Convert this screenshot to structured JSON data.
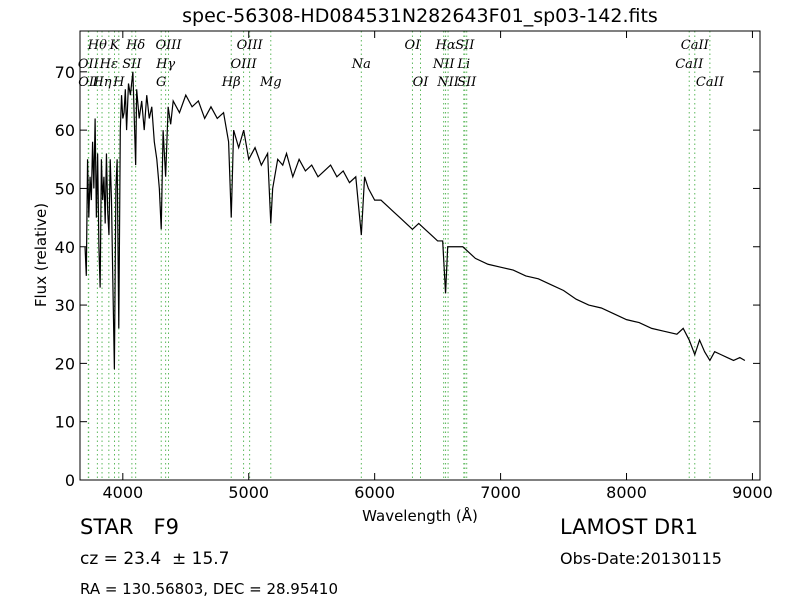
{
  "chart_data": {
    "type": "line",
    "title": "spec-56308-HD084531N282643F01_sp03-142.fits",
    "x_label": "Wavelength (Å)",
    "y_label": "Flux (relative)",
    "xlim": [
      3660,
      9060
    ],
    "ylim": [
      0,
      77
    ],
    "xticks": [
      4000,
      5000,
      6000,
      7000,
      8000,
      9000
    ],
    "yticks": [
      0,
      10,
      20,
      30,
      40,
      50,
      60,
      70
    ],
    "x": [
      3700,
      3710,
      3720,
      3730,
      3740,
      3750,
      3760,
      3770,
      3780,
      3790,
      3800,
      3810,
      3820,
      3830,
      3840,
      3850,
      3860,
      3870,
      3880,
      3890,
      3900,
      3910,
      3920,
      3933,
      3945,
      3955,
      3968,
      3980,
      3990,
      4000,
      4010,
      4020,
      4030,
      4045,
      4060,
      4080,
      4102,
      4110,
      4130,
      4150,
      4170,
      4190,
      4210,
      4230,
      4250,
      4270,
      4290,
      4305,
      4320,
      4340,
      4360,
      4380,
      4400,
      4450,
      4500,
      4550,
      4600,
      4650,
      4700,
      4750,
      4800,
      4840,
      4861,
      4880,
      4920,
      4960,
      5000,
      5050,
      5100,
      5150,
      5175,
      5190,
      5230,
      5270,
      5300,
      5350,
      5400,
      5450,
      5500,
      5550,
      5600,
      5650,
      5700,
      5750,
      5800,
      5850,
      5894,
      5920,
      5950,
      6000,
      6050,
      6100,
      6150,
      6200,
      6250,
      6300,
      6350,
      6400,
      6450,
      6500,
      6540,
      6563,
      6580,
      6620,
      6700,
      6750,
      6800,
      6900,
      7000,
      7100,
      7200,
      7300,
      7400,
      7500,
      7600,
      7700,
      7800,
      7900,
      8000,
      8100,
      8200,
      8300,
      8400,
      8450,
      8498,
      8542,
      8580,
      8620,
      8662,
      8700,
      8750,
      8800,
      8850,
      8900,
      8940
    ],
    "series": [
      {
        "color": "#000000",
        "values": [
          40,
          35,
          55,
          45,
          52,
          48,
          58,
          50,
          62,
          45,
          56,
          40,
          33,
          55,
          48,
          52,
          44,
          56,
          46,
          42,
          55,
          48,
          35,
          19,
          50,
          55,
          26,
          60,
          66,
          62,
          63,
          67,
          60,
          68,
          66,
          70,
          54,
          67,
          62,
          65,
          60,
          66,
          62,
          64,
          58,
          55,
          50,
          43,
          60,
          52,
          64,
          61,
          65,
          63,
          66,
          64,
          65,
          62,
          64,
          62,
          63,
          58,
          45,
          60,
          57,
          60,
          55,
          57,
          54,
          56,
          44,
          50,
          55,
          54,
          56,
          52,
          55,
          53,
          54,
          52,
          53,
          54,
          52,
          53,
          51,
          52,
          42,
          52,
          50,
          48,
          48,
          47,
          46,
          45,
          44,
          43,
          44,
          43,
          42,
          41,
          41,
          32,
          40,
          40,
          40,
          39,
          38,
          37,
          36.5,
          36,
          35,
          34.5,
          33.5,
          32.5,
          31,
          30,
          29.5,
          28.5,
          27.5,
          27,
          26,
          25.5,
          25,
          26,
          24,
          21.5,
          24,
          22,
          20.5,
          22,
          21.5,
          21,
          20.5,
          21,
          20.5
        ]
      }
    ],
    "annotation_color": "#5cb85c",
    "annotations": [
      {
        "label": "OII",
        "x": 3726
      },
      {
        "label": "OII",
        "x": 3729
      },
      {
        "label": "Hθ",
        "x": 3798
      },
      {
        "label": "Hη",
        "x": 3835
      },
      {
        "label": "Hε",
        "x": 3889
      },
      {
        "label": "K",
        "x": 3934
      },
      {
        "label": "H",
        "x": 3968
      },
      {
        "label": "SII",
        "x": 4072
      },
      {
        "label": "Hδ",
        "x": 4102
      },
      {
        "label": "G",
        "x": 4305
      },
      {
        "label": "Hγ",
        "x": 4340
      },
      {
        "label": "OIII",
        "x": 4363
      },
      {
        "label": "Hβ",
        "x": 4861
      },
      {
        "label": "OIII",
        "x": 4959
      },
      {
        "label": "OIII",
        "x": 5007
      },
      {
        "label": "Mg",
        "x": 5175
      },
      {
        "label": "Na",
        "x": 5894
      },
      {
        "label": "OI",
        "x": 6300
      },
      {
        "label": "OI",
        "x": 6364
      },
      {
        "label": "NII",
        "x": 6548
      },
      {
        "label": "Hα",
        "x": 6563
      },
      {
        "label": "NII",
        "x": 6583
      },
      {
        "label": "Li",
        "x": 6708
      },
      {
        "label": "SII",
        "x": 6716
      },
      {
        "label": "SII",
        "x": 6731
      },
      {
        "label": "CaII",
        "x": 8498
      },
      {
        "label": "CaII",
        "x": 8542
      },
      {
        "label": "CaII",
        "x": 8662
      }
    ]
  },
  "footer": {
    "object": "STAR   F9",
    "cz": "cz = 23.4  ± 15.7",
    "coords": "RA = 130.56803, DEC = 28.95410",
    "survey": "LAMOST DR1",
    "obs_date": "Obs-Date:20130115"
  }
}
